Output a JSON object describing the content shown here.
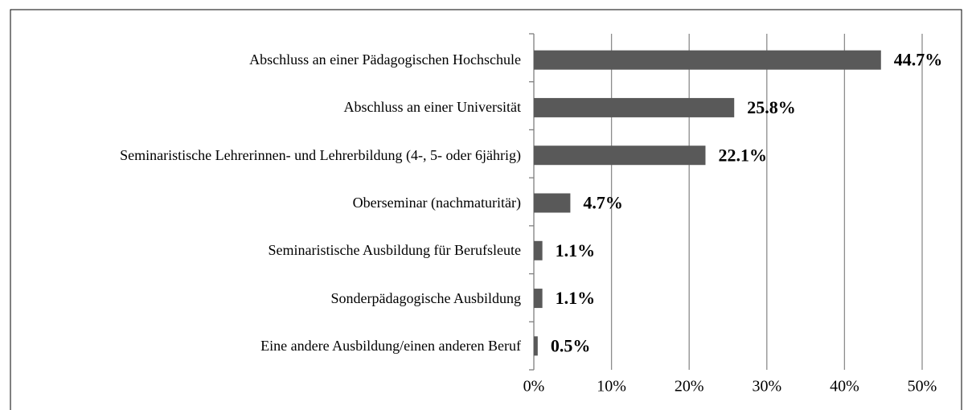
{
  "chart_data": {
    "type": "barh",
    "categories": [
      "Abschluss an einer Pädagogischen Hochschule",
      "Abschluss an einer Universität",
      "Seminaristische Lehrerinnen- und Lehrerbildung (4-, 5- oder 6jährig)",
      "Oberseminar (nachmaturitär)",
      "Seminaristische Ausbildung für Berufsleute",
      "Sonderpädagogische Ausbildung",
      "Eine andere Ausbildung/einen anderen Beruf"
    ],
    "values": [
      44.7,
      25.8,
      22.1,
      4.7,
      1.1,
      1.1,
      0.5
    ],
    "value_labels": [
      "44.7%",
      "25.8%",
      "22.1%",
      "4.7%",
      "1.1%",
      "1.1%",
      "0.5%"
    ],
    "color": "#595959",
    "xlim": [
      0,
      50
    ],
    "xticks": [
      {
        "value": 0,
        "label": "0%"
      },
      {
        "value": 10,
        "label": "10%"
      },
      {
        "value": 20,
        "label": "20%"
      },
      {
        "value": 30,
        "label": "30%"
      },
      {
        "value": 40,
        "label": "40%"
      },
      {
        "value": 50,
        "label": "50%"
      }
    ],
    "grid": true
  }
}
